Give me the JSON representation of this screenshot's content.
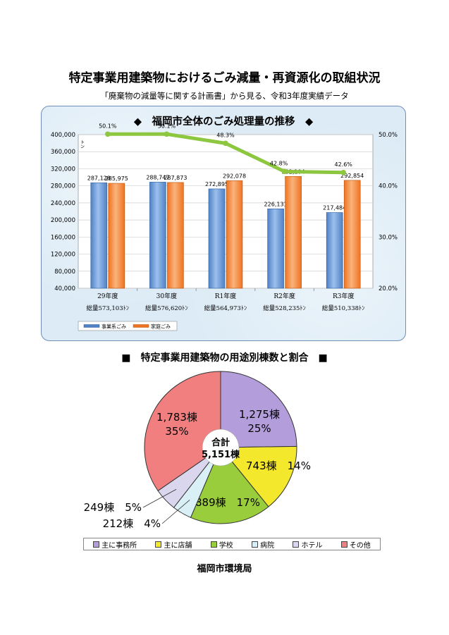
{
  "page": {
    "title": "特定事業用建築物におけるごみ減量・再資源化の取組状況",
    "subtitle": "「廃棄物の減量等に関する計画書」から見る、令和3年度実績データ",
    "footer": "福岡市環境局"
  },
  "bar_section": {
    "title": "◆　福岡市全体のごみ処理量の推移　◆"
  },
  "pie_section": {
    "title": "■　特定事業用建築物の用途別棟数と割合　■"
  },
  "chart_data": [
    {
      "type": "bar",
      "title": "福岡市全体のごみ処理量の推移",
      "unit_label": "ト\nン",
      "categories": [
        "29年度",
        "30年度",
        "R1年度",
        "R2年度",
        "R3年度"
      ],
      "category_totals": [
        "総量573,103ﾄﾝ",
        "総量576,620ﾄﾝ",
        "総量564,973ﾄﾝ",
        "総量528,235ﾄﾝ",
        "総量510,338ﾄﾝ"
      ],
      "series": [
        {
          "name": "事業系ごみ",
          "values": [
            287128,
            288747,
            272895,
            226131,
            217484
          ],
          "labels": [
            "287,128",
            "288,747",
            "272,895",
            "226,131",
            "217,484"
          ],
          "color": "#4f81c4"
        },
        {
          "name": "家庭ごみ",
          "values": [
            285975,
            287873,
            292078,
            302104,
            292854
          ],
          "labels": [
            "285,975",
            "287,873",
            "292,078",
            "302,104",
            "292,854"
          ],
          "color": "#ef7320"
        }
      ],
      "line_series": {
        "values": [
          50.1,
          50.1,
          48.3,
          42.8,
          42.6
        ],
        "labels": [
          "50.1%",
          "50.1%",
          "48.3%",
          "42.8%",
          "42.6%"
        ],
        "color": "#8dc63f"
      },
      "ylim": [
        40000,
        400000
      ],
      "yticks": [
        "40,000",
        "80,000",
        "120,000",
        "160,000",
        "200,000",
        "240,000",
        "280,000",
        "320,000",
        "360,000",
        "400,000"
      ],
      "y2lim": [
        20.0,
        50.0
      ],
      "y2ticks": [
        "20.0%",
        "30.0%",
        "40.0%",
        "50.0%"
      ],
      "grid": true,
      "legend": "bottom-left"
    },
    {
      "type": "pie",
      "title": "特定事業用建築物の用途別棟数と割合",
      "center_label": [
        "合計",
        "5,151棟"
      ],
      "slices": [
        {
          "name": "主に事務所",
          "value": 1275,
          "percent": 25,
          "label": [
            "1,275棟",
            "25%"
          ],
          "color": "#b39ddb"
        },
        {
          "name": "主に店舗",
          "value": 743,
          "percent": 14,
          "label": [
            "743棟　14%"
          ],
          "color": "#f4e82c"
        },
        {
          "name": "学校",
          "value": 889,
          "percent": 17,
          "label": [
            "889棟　17%"
          ],
          "color": "#9acd3c"
        },
        {
          "name": "病院",
          "value": 212,
          "percent": 4,
          "label": [
            "212棟　4%"
          ],
          "color": "#d8f0f6"
        },
        {
          "name": "ホテル",
          "value": 249,
          "percent": 5,
          "label": [
            "249棟　5%"
          ],
          "color": "#d9d6ee"
        },
        {
          "name": "その他",
          "value": 1783,
          "percent": 35,
          "label": [
            "1,783棟",
            "35%"
          ],
          "color": "#f17f7f"
        }
      ],
      "legend_labels": [
        "主に事務所",
        "主に店舗",
        "学校",
        "病院",
        "ホテル",
        "その他"
      ]
    }
  ]
}
